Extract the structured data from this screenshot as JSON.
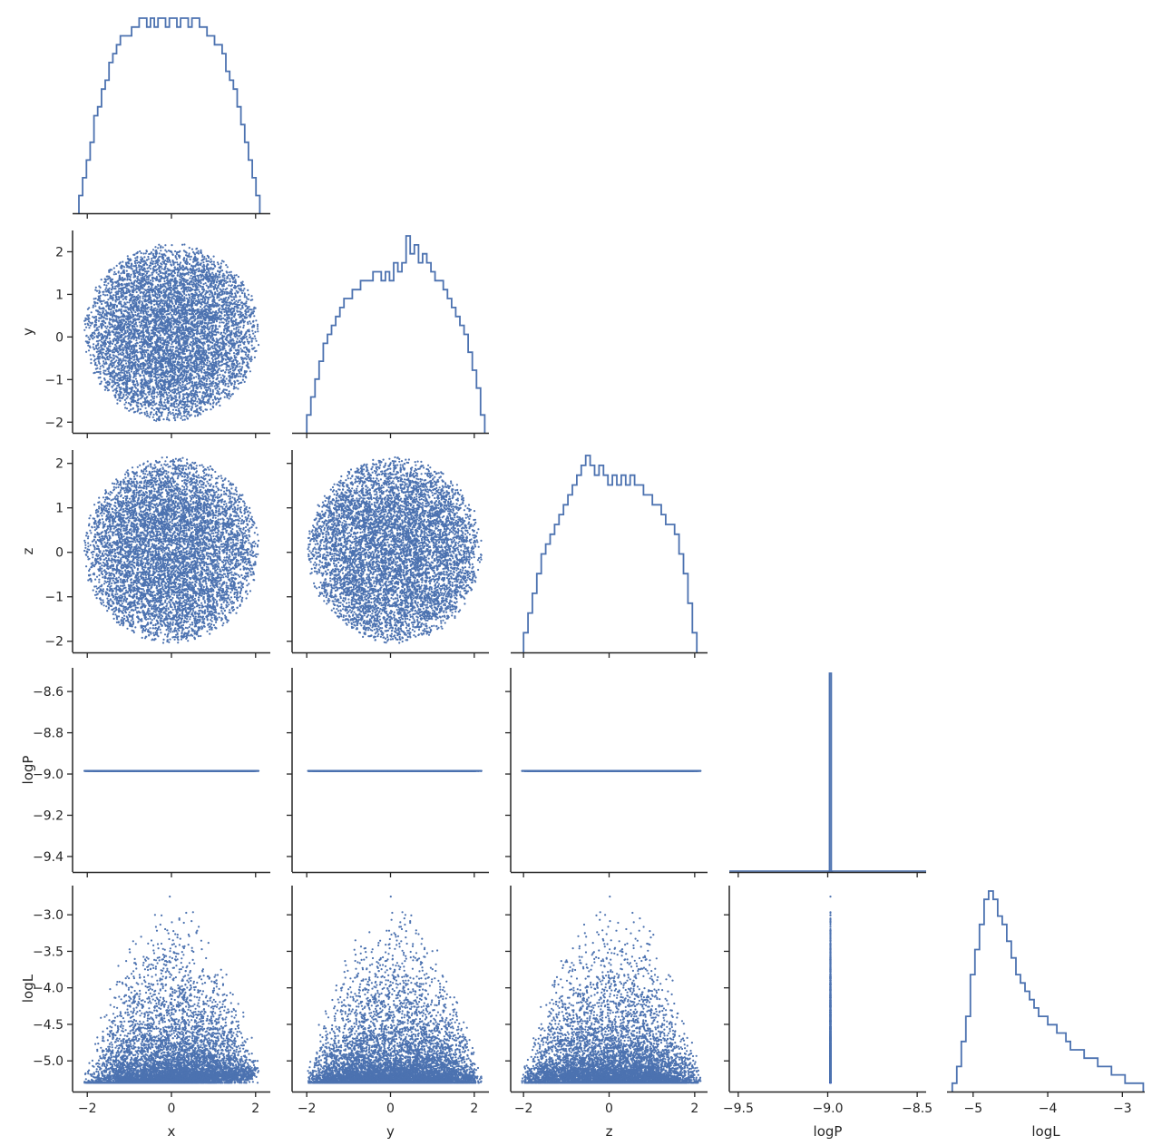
{
  "chart_data": {
    "type": "scatter",
    "subtype": "corner-pairplot",
    "title": "",
    "variables": [
      "x",
      "y",
      "z",
      "logP",
      "logL"
    ],
    "color": "#4c72b0",
    "axis_color": "#262626",
    "grid": false,
    "legend": "none",
    "axis_labels": {
      "x": "x",
      "y": "y",
      "z": "z",
      "logP": "logP",
      "logL": "logL"
    },
    "ticks": {
      "x": [
        {
          "v": -2,
          "label": "−2"
        },
        {
          "v": 0,
          "label": "0"
        },
        {
          "v": 2,
          "label": "2"
        }
      ],
      "y": [
        {
          "v": -2,
          "label": "−2"
        },
        {
          "v": -1,
          "label": "−1"
        },
        {
          "v": 0,
          "label": "0"
        },
        {
          "v": 1,
          "label": "1"
        },
        {
          "v": 2,
          "label": "2"
        }
      ],
      "y_x": [
        {
          "v": -2,
          "label": "−2"
        },
        {
          "v": 0,
          "label": "0"
        },
        {
          "v": 2,
          "label": "2"
        }
      ],
      "z": [
        {
          "v": -2,
          "label": "−2"
        },
        {
          "v": -1,
          "label": "−1"
        },
        {
          "v": 0,
          "label": "0"
        },
        {
          "v": 1,
          "label": "1"
        },
        {
          "v": 2,
          "label": "2"
        }
      ],
      "z_x": [
        {
          "v": -2,
          "label": "−2"
        },
        {
          "v": 0,
          "label": "0"
        },
        {
          "v": 2,
          "label": "2"
        }
      ],
      "logP": [
        {
          "v": -8.6,
          "label": "−8.6"
        },
        {
          "v": -8.8,
          "label": "−8.8"
        },
        {
          "v": -9.0,
          "label": "−9.0"
        },
        {
          "v": -9.2,
          "label": "−9.2"
        },
        {
          "v": -9.4,
          "label": "−9.4"
        }
      ],
      "logP_x": [
        {
          "v": -9.5,
          "label": "−9.5"
        },
        {
          "v": -9.0,
          "label": "−9.0"
        },
        {
          "v": -8.5,
          "label": "−8.5"
        }
      ],
      "logL": [
        {
          "v": -3.0,
          "label": "−3.0"
        },
        {
          "v": -3.5,
          "label": "−3.5"
        },
        {
          "v": -4.0,
          "label": "−4.0"
        },
        {
          "v": -4.5,
          "label": "−4.5"
        },
        {
          "v": -5.0,
          "label": "−5.0"
        }
      ],
      "logL_x": [
        {
          "v": -5,
          "label": "−5"
        },
        {
          "v": -4,
          "label": "−4"
        },
        {
          "v": -3,
          "label": "−3"
        }
      ]
    },
    "ranges": {
      "x": [
        -2.35,
        2.35
      ],
      "y_x": [
        -2.35,
        2.35
      ],
      "z_x": [
        -2.3,
        2.3
      ],
      "y": [
        -2.25,
        2.5
      ],
      "z": [
        -2.25,
        2.3
      ],
      "logP": [
        -9.475,
        -8.485
      ],
      "logP_x": [
        -9.55,
        -8.45
      ],
      "logL": [
        -5.42,
        -2.6
      ],
      "logL_x": [
        -5.35,
        -2.7
      ]
    },
    "scatter_shape": {
      "sphere_radius": 2.1,
      "center": [
        0.0,
        0.1,
        0.05
      ],
      "logP_value": -8.985,
      "logL_max": -2.75,
      "logL_min": -5.3,
      "n_points": 7000
    },
    "histograms": {
      "x": {
        "edges_range": [
          -2.2,
          2.1
        ],
        "counts": [
          2,
          4,
          6,
          8,
          11,
          12,
          14,
          15,
          17,
          18,
          19,
          20,
          20,
          20,
          21,
          21,
          22,
          22,
          21,
          22,
          21,
          22,
          22,
          21,
          22,
          22,
          21,
          22,
          22,
          21,
          22,
          22,
          21,
          21,
          20,
          20,
          19,
          19,
          18,
          16,
          15,
          14,
          12,
          10,
          8,
          6,
          4,
          2
        ]
      },
      "y": {
        "edges_range": [
          -2.0,
          2.25
        ],
        "counts": [
          2,
          4,
          6,
          8,
          10,
          11,
          12,
          13,
          14,
          15,
          15,
          16,
          16,
          17,
          17,
          17,
          18,
          18,
          17,
          18,
          17,
          19,
          18,
          19,
          22,
          20,
          21,
          19,
          20,
          19,
          18,
          17,
          17,
          16,
          15,
          14,
          13,
          12,
          11,
          9,
          7,
          5,
          2
        ]
      },
      "z": {
        "edges_range": [
          -2.0,
          2.05
        ],
        "counts": [
          2,
          4,
          6,
          8,
          10,
          11,
          12,
          13,
          14,
          15,
          16,
          17,
          18,
          19,
          20,
          19,
          18,
          19,
          18,
          17,
          18,
          17,
          18,
          17,
          18,
          17,
          17,
          16,
          16,
          15,
          15,
          14,
          13,
          13,
          12,
          10,
          8,
          5,
          2
        ]
      },
      "logP": {
        "edges_range": [
          -9.0,
          -8.97
        ],
        "counts": [
          0,
          1,
          0
        ]
      },
      "logL": {
        "edges_range": [
          -5.28,
          -2.72
        ],
        "counts": [
          1,
          3,
          6,
          9,
          14,
          17,
          20,
          23,
          24,
          23,
          21,
          20,
          18,
          16,
          14,
          13,
          12,
          11,
          10,
          9,
          9,
          8,
          8,
          7,
          7,
          6,
          5,
          5,
          5,
          4,
          4,
          4,
          3,
          3,
          3,
          2,
          2,
          2,
          1,
          1,
          1,
          1
        ]
      }
    }
  }
}
